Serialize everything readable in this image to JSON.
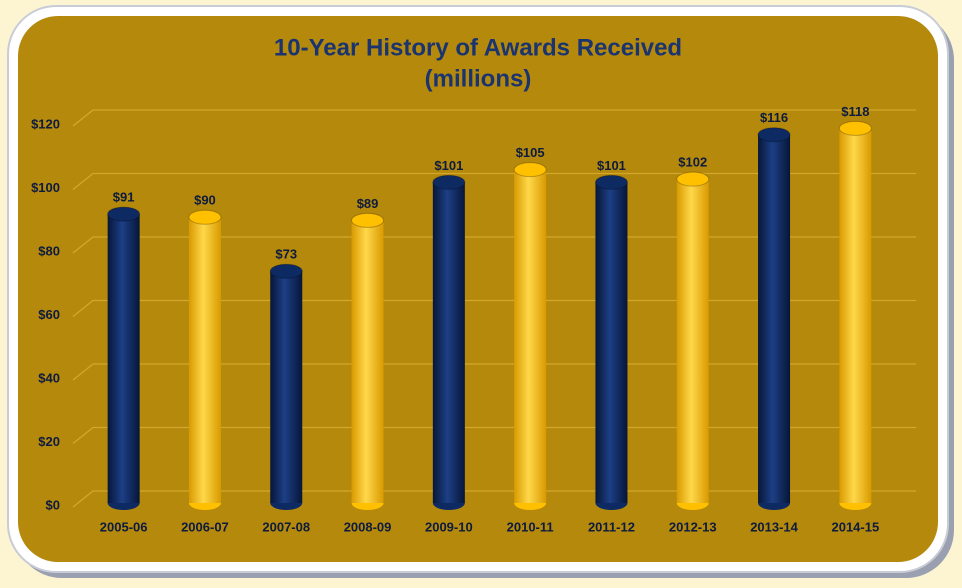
{
  "chart_data": {
    "type": "bar",
    "title": "10-Year History of Awards Received",
    "subtitle": "(millions)",
    "categories": [
      "2005-06",
      "2006-07",
      "2007-08",
      "2008-09",
      "2009-10",
      "2010-11",
      "2011-12",
      "2012-13",
      "2013-14",
      "2014-15"
    ],
    "values": [
      91,
      90,
      73,
      89,
      101,
      105,
      101,
      102,
      116,
      118
    ],
    "value_labels": [
      "$91",
      "$90",
      "$73",
      "$89",
      "$101",
      "$105",
      "$101",
      "$102",
      "$116",
      "$118"
    ],
    "colors": [
      "#0d2a63",
      "#ffc000",
      "#0d2a63",
      "#ffc000",
      "#0d2a63",
      "#ffc000",
      "#0d2a63",
      "#ffc000",
      "#0d2a63",
      "#ffc000"
    ],
    "ylim": [
      0,
      120
    ],
    "yticks": [
      {
        "value": 0,
        "label": "$0"
      },
      {
        "value": 20,
        "label": "$20"
      },
      {
        "value": 40,
        "label": "$40"
      },
      {
        "value": 60,
        "label": "$60"
      },
      {
        "value": 80,
        "label": "$80"
      },
      {
        "value": 100,
        "label": "$100"
      },
      {
        "value": 120,
        "label": "$120"
      }
    ],
    "grid": true
  }
}
